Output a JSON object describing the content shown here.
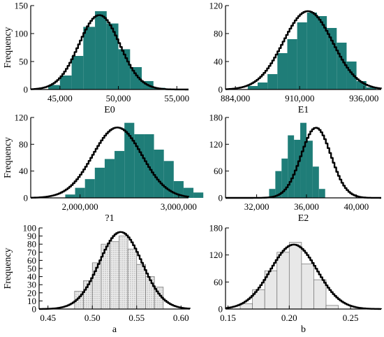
{
  "chart_data": [
    {
      "id": "E0",
      "type": "bar",
      "style": "filled",
      "fill_color": "#1f7d78",
      "xlabel": "E0",
      "ylabel": "Frequency",
      "xlim": [
        42500,
        56000
      ],
      "ylim": [
        0,
        150
      ],
      "xticks": [
        45000,
        50000,
        55000
      ],
      "xtick_labels": [
        "45,000",
        "50,000",
        "55,000"
      ],
      "yticks": [
        0,
        50,
        100,
        150
      ],
      "ytick_labels": [
        "0",
        "50",
        "100",
        "150"
      ],
      "bins": {
        "start": 44000,
        "width": 1000,
        "values": [
          8,
          25,
          60,
          112,
          140,
          118,
          72,
          40,
          15,
          3
        ]
      },
      "fit": {
        "mean": 48300,
        "sd": 1750,
        "peak": 133
      }
    },
    {
      "id": "E1",
      "type": "bar",
      "style": "filled",
      "fill_color": "#1f7d78",
      "xlabel": "E1",
      "ylabel": "",
      "xlim": [
        880000,
        943000
      ],
      "ylim": [
        0,
        120
      ],
      "xticks": [
        884000,
        910000,
        936000
      ],
      "xtick_labels": [
        "884,000",
        "910,000",
        "936,000"
      ],
      "yticks": [
        0,
        40,
        80,
        120
      ],
      "ytick_labels": [
        "0",
        "40",
        "80",
        "120"
      ],
      "bins": {
        "start": 889000,
        "width": 4000,
        "values": [
          5,
          10,
          22,
          52,
          72,
          96,
          110,
          105,
          88,
          67,
          40,
          12,
          3
        ]
      },
      "fit": {
        "mean": 913000,
        "sd": 10000,
        "peak": 112
      }
    },
    {
      "id": "P1",
      "type": "bar",
      "style": "filled",
      "fill_color": "#1f7d78",
      "xlabel": "?1",
      "ylabel": "Frequency",
      "xlim": [
        1500000,
        3100000
      ],
      "ylim": [
        0,
        120
      ],
      "xticks": [
        2000000,
        3000000
      ],
      "xtick_labels": [
        "2,000,000",
        "3,000,000"
      ],
      "yticks": [
        0,
        40,
        80,
        120
      ],
      "ytick_labels": [
        "0",
        "40",
        "80",
        "120"
      ],
      "bins": {
        "start": 1850000,
        "width": 100000,
        "values": [
          5,
          15,
          28,
          45,
          58,
          70,
          112,
          95,
          95,
          72,
          55,
          25,
          15,
          8
        ]
      },
      "fit": {
        "mean": 2370000,
        "sd": 250000,
        "peak": 105
      }
    },
    {
      "id": "E2",
      "type": "bar",
      "style": "filled",
      "fill_color": "#1f7d78",
      "xlabel": "E2",
      "ylabel": "",
      "xlim": [
        29500,
        42000
      ],
      "ylim": [
        0,
        180
      ],
      "xticks": [
        32000,
        36000,
        40000
      ],
      "xtick_labels": [
        "32,000",
        "36,000",
        "40,000"
      ],
      "yticks": [
        0,
        60,
        120,
        180
      ],
      "ytick_labels": [
        "0",
        "60",
        "120",
        "180"
      ],
      "bins": {
        "start": 33000,
        "width": 500,
        "values": [
          20,
          60,
          88,
          140,
          130,
          168,
          128,
          70,
          20
        ]
      },
      "fit": {
        "mean": 36700,
        "sd": 1200,
        "peak": 157
      }
    },
    {
      "id": "a",
      "type": "bar",
      "style": "dotted",
      "fill_color": "#e4e4e4",
      "xlabel": "a",
      "ylabel": "Frequency",
      "xlim": [
        0.44,
        0.61
      ],
      "ylim": [
        0,
        100
      ],
      "xticks": [
        0.45,
        0.5,
        0.55,
        0.6
      ],
      "xtick_labels": [
        "0.45",
        "0.50",
        "0.55",
        "0.60"
      ],
      "yticks": [
        0,
        10,
        20,
        30,
        40,
        50,
        60,
        70,
        80,
        90,
        100
      ],
      "ytick_labels": [
        "0",
        "10",
        "20",
        "30",
        "40",
        "50",
        "60",
        "70",
        "80",
        "90",
        "100"
      ],
      "bins": {
        "start": 0.48,
        "width": 0.01,
        "values": [
          22,
          35,
          57,
          80,
          83,
          90,
          74,
          55,
          40,
          27
        ]
      },
      "fit": {
        "mean": 0.531,
        "sd": 0.024,
        "peak": 95
      }
    },
    {
      "id": "b",
      "type": "bar",
      "style": "light",
      "fill_color": "#e8e8e8",
      "xlabel": "b",
      "ylabel": "",
      "xlim": [
        0.148,
        0.275
      ],
      "ylim": [
        0,
        180
      ],
      "xticks": [
        0.15,
        0.2,
        0.25
      ],
      "xtick_labels": [
        "0.15",
        "0.20",
        "0.25"
      ],
      "yticks": [
        0,
        60,
        120,
        180
      ],
      "ytick_labels": [
        "0",
        "60",
        "120",
        "180"
      ],
      "bins": {
        "start": 0.16,
        "width": 0.01,
        "values": [
          12,
          43,
          85,
          126,
          148,
          100,
          65,
          8
        ]
      },
      "fit": {
        "mean": 0.203,
        "sd": 0.019,
        "peak": 143
      }
    }
  ]
}
